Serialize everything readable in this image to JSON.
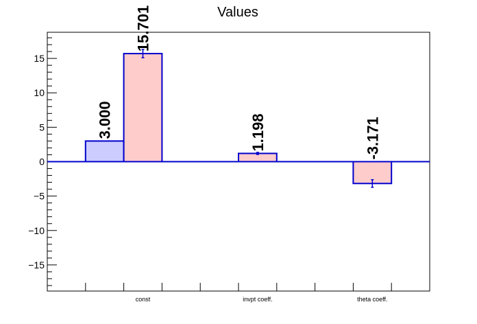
{
  "chart_data": {
    "type": "bar",
    "title": "Values",
    "xlabel": "",
    "ylabel": "",
    "ylim": [
      -18.8,
      18.8
    ],
    "categories": [
      "const",
      "invpt coeff.",
      "theta coeff."
    ],
    "yticks": [
      15,
      10,
      5,
      0,
      -5,
      -10,
      -15
    ],
    "ytick_labels": [
      "15",
      "10",
      "5",
      "0",
      "−5",
      "−10",
      "−15"
    ],
    "series": [
      {
        "values": [
          3.0,
          null,
          null
        ],
        "labels": [
          "3.000",
          "",
          ""
        ],
        "fill": "#ccccff",
        "stroke": "#0000cc"
      },
      {
        "values": [
          15.701,
          1.198,
          -3.171
        ],
        "errors": [
          0.6,
          0.15,
          0.55
        ],
        "labels": [
          "15.701",
          "1.198",
          "-3.171"
        ],
        "fill": "#ffcccc",
        "stroke": "#0000cc"
      }
    ],
    "zero_line_color": "#0000cc",
    "grid": false
  }
}
